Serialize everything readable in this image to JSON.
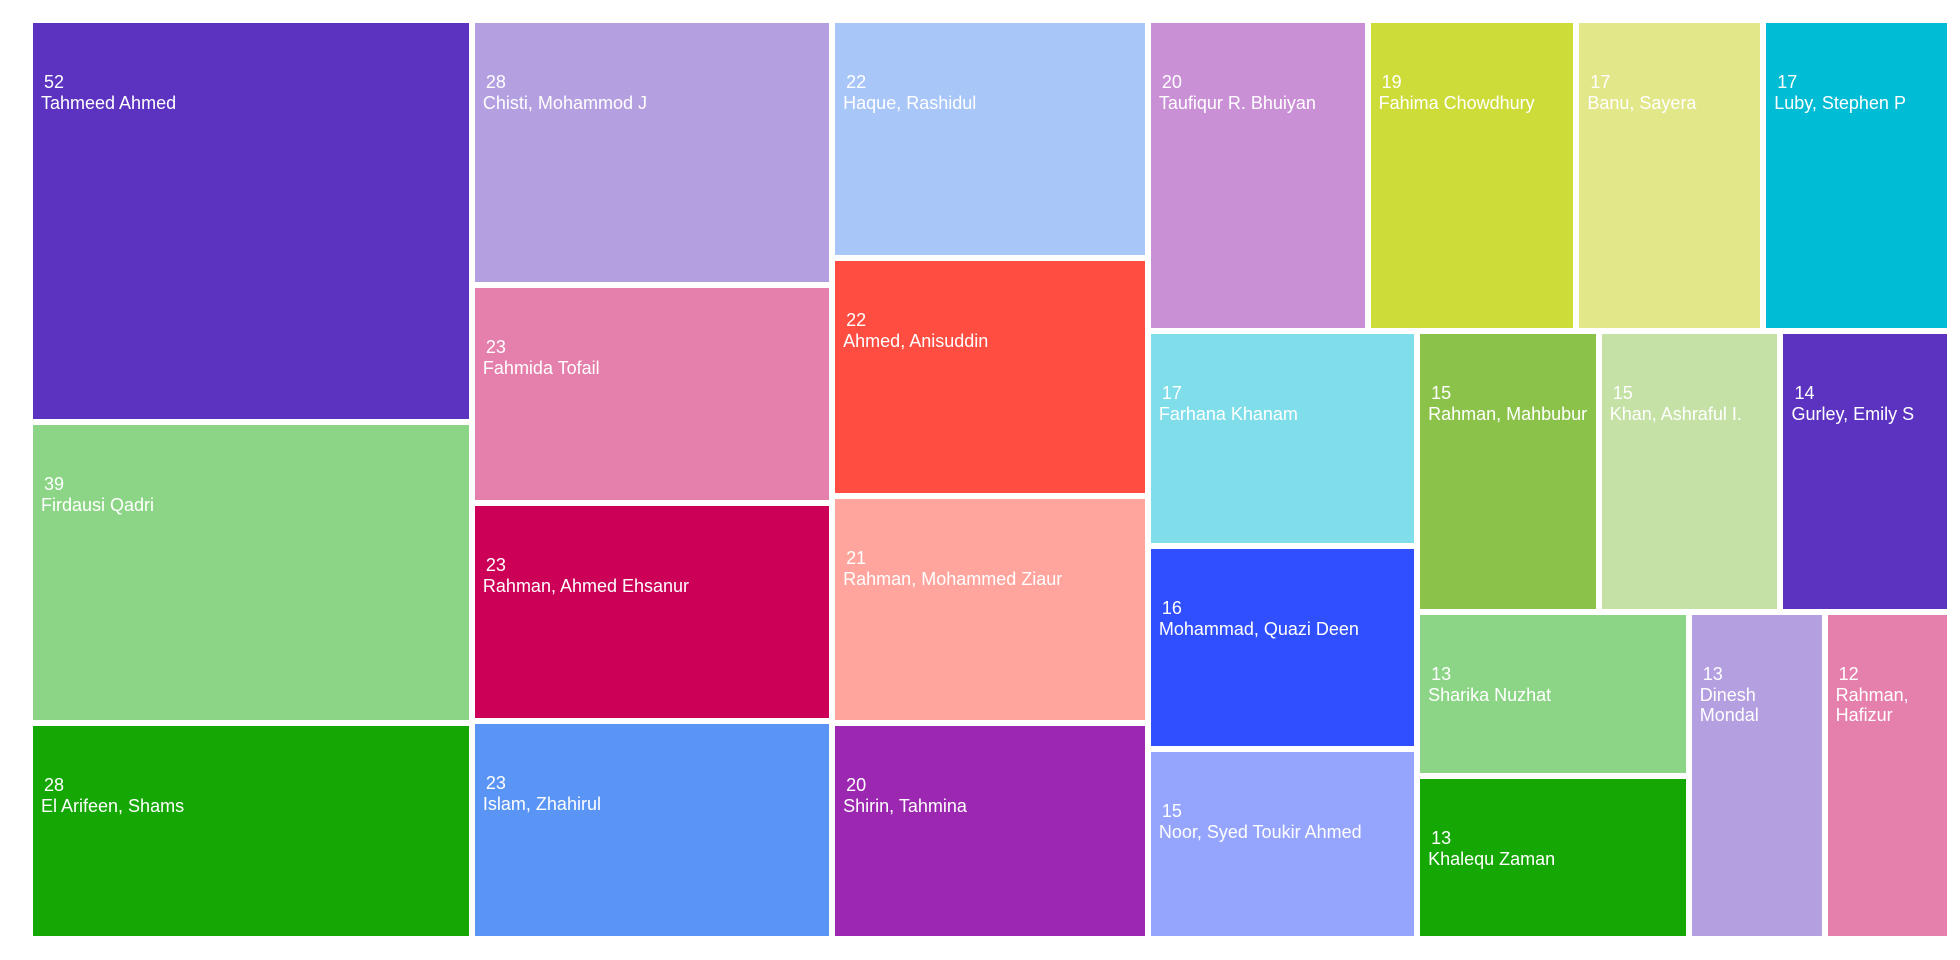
{
  "chart_data": {
    "type": "treemap",
    "labels": [
      "Tahmeed Ahmed",
      "Firdausi Qadri",
      "El Arifeen, Shams",
      "Chisti, Mohammod J",
      "Fahmida Tofail",
      "Rahman, Ahmed Ehsanur",
      "Islam, Zhahirul",
      "Haque, Rashidul",
      "Ahmed, Anisuddin",
      "Rahman, Mohammed Ziaur",
      "Shirin, Tahmina",
      "Taufiqur R. Bhuiyan",
      "Fahima Chowdhury",
      "Banu, Sayera",
      "Luby, Stephen P",
      "Farhana Khanam",
      "Mohammad, Quazi Deen",
      "Noor, Syed Toukir Ahmed",
      "Rahman, Mahbubur",
      "Khan, Ashraful I.",
      "Gurley, Emily S",
      "Sharika Nuzhat",
      "Khalequ Zaman",
      "Dinesh Mondal",
      "Rahman, Hafizur"
    ],
    "values": [
      52,
      39,
      28,
      28,
      23,
      23,
      23,
      22,
      22,
      21,
      20,
      20,
      19,
      17,
      17,
      17,
      16,
      15,
      15,
      15,
      14,
      13,
      13,
      13,
      12
    ],
    "colors": [
      "#5c33c0",
      "#8dd586",
      "#15a805",
      "#b49fe0",
      "#e57fab",
      "#cd0057",
      "#5a95f5",
      "#a8c6f8",
      "#ff4d41",
      "#ffa59e",
      "#9c27b0",
      "#ca90d6",
      "#cddc39",
      "#e2e78a",
      "#00bcd4",
      "#80deea",
      "#304ffe",
      "#95a5fe",
      "#8bc34a",
      "#c5e1a5",
      "#5c33c0",
      "#8dd586",
      "#15a805",
      "#b49fe0",
      "#e57fab"
    ]
  }
}
